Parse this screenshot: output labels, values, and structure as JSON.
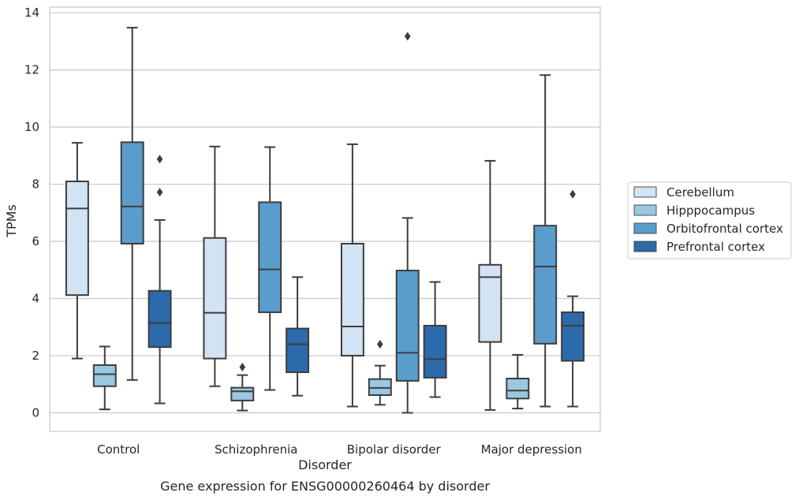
{
  "chart_data": {
    "type": "box",
    "title": "",
    "caption": "Gene expression for ENSG00000260464 by disorder",
    "xlabel": "Disorder",
    "ylabel": "TPMs",
    "ylim": [
      -0.65,
      14.2
    ],
    "yticks": [
      0,
      2,
      4,
      6,
      8,
      10,
      12,
      14
    ],
    "grid": true,
    "legend_position": "right",
    "categories": [
      "Control",
      "Schizophrenia",
      "Bipolar disorder",
      "Major depression"
    ],
    "series": [
      {
        "name": "Cerebellum",
        "color": "#d2e3f3",
        "boxes": [
          {
            "whisker_low": 1.9,
            "q1": 4.12,
            "median": 7.15,
            "q3": 8.1,
            "whisker_high": 9.45,
            "outliers": []
          },
          {
            "whisker_low": 0.93,
            "q1": 1.9,
            "median": 3.5,
            "q3": 6.12,
            "whisker_high": 9.32,
            "outliers": []
          },
          {
            "whisker_low": 0.22,
            "q1": 2.0,
            "median": 3.02,
            "q3": 5.92,
            "whisker_high": 9.4,
            "outliers": []
          },
          {
            "whisker_low": 0.1,
            "q1": 2.48,
            "median": 4.75,
            "q3": 5.18,
            "whisker_high": 8.82,
            "outliers": []
          }
        ]
      },
      {
        "name": "Hipppocampus",
        "color": "#9ac8e0",
        "boxes": [
          {
            "whisker_low": 0.12,
            "q1": 0.93,
            "median": 1.35,
            "q3": 1.67,
            "whisker_high": 2.32,
            "outliers": []
          },
          {
            "whisker_low": 0.08,
            "q1": 0.43,
            "median": 0.75,
            "q3": 0.88,
            "whisker_high": 1.32,
            "outliers": [
              1.6
            ]
          },
          {
            "whisker_low": 0.28,
            "q1": 0.62,
            "median": 0.87,
            "q3": 1.18,
            "whisker_high": 1.65,
            "outliers": [
              2.4
            ]
          },
          {
            "whisker_low": 0.15,
            "q1": 0.5,
            "median": 0.78,
            "q3": 1.2,
            "whisker_high": 2.03,
            "outliers": []
          }
        ]
      },
      {
        "name": "Orbitofrontal cortex",
        "color": "#5a9dcd",
        "boxes": [
          {
            "whisker_low": 1.15,
            "q1": 5.92,
            "median": 7.22,
            "q3": 9.47,
            "whisker_high": 13.48,
            "outliers": []
          },
          {
            "whisker_low": 0.8,
            "q1": 3.52,
            "median": 5.02,
            "q3": 7.37,
            "whisker_high": 9.3,
            "outliers": []
          },
          {
            "whisker_low": 0.0,
            "q1": 1.12,
            "median": 2.1,
            "q3": 4.98,
            "whisker_high": 6.82,
            "outliers": [
              13.18
            ]
          },
          {
            "whisker_low": 0.22,
            "q1": 2.42,
            "median": 5.12,
            "q3": 6.55,
            "whisker_high": 11.82,
            "outliers": []
          }
        ]
      },
      {
        "name": "Prefrontal cortex",
        "color": "#2c6aac",
        "boxes": [
          {
            "whisker_low": 0.33,
            "q1": 2.3,
            "median": 3.15,
            "q3": 4.27,
            "whisker_high": 6.75,
            "outliers": [
              7.72,
              8.88
            ]
          },
          {
            "whisker_low": 0.6,
            "q1": 1.42,
            "median": 2.4,
            "q3": 2.95,
            "whisker_high": 4.75,
            "outliers": []
          },
          {
            "whisker_low": 0.55,
            "q1": 1.23,
            "median": 1.88,
            "q3": 3.05,
            "whisker_high": 4.58,
            "outliers": []
          },
          {
            "whisker_low": 0.22,
            "q1": 1.82,
            "median": 3.05,
            "q3": 3.52,
            "whisker_high": 4.08,
            "outliers": [
              7.65
            ]
          }
        ]
      }
    ]
  }
}
